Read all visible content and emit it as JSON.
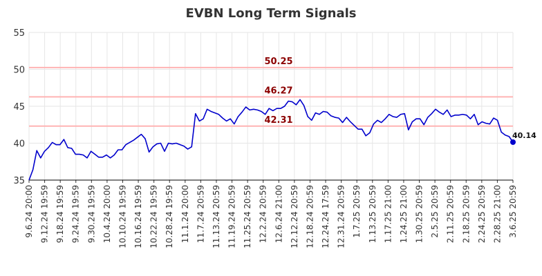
{
  "chart_data": {
    "type": "line",
    "title": "EVBN Long Term Signals",
    "xlabel": "",
    "ylabel": "",
    "ylim": [
      35,
      55
    ],
    "yticks": [
      35,
      40,
      45,
      50,
      55
    ],
    "grid": true,
    "x_tick_labels": [
      "9.6.24 20:00",
      "9.12.24 19:59",
      "9.18.24 19:59",
      "9.24.24 19:59",
      "9.30.24 19:59",
      "10.4.24 20:00",
      "10.10.24 19:59",
      "10.16.24 19:59",
      "10.22.24 19:59",
      "10.28.24 19:59",
      "11.1.24 20:00",
      "11.7.24 20:59",
      "11.13.24 20:59",
      "11.19.24 20:59",
      "11.25.24 20:59",
      "12.2.24 20:59",
      "12.6.24 21:00",
      "12.12.24 20:59",
      "12.18.24 20:59",
      "12.24.24 17:59",
      "12.31.24 20:59",
      "1.7.25 20:59",
      "1.13.25 20:59",
      "1.17.25 21:00",
      "1.24.25 21:00",
      "1.30.25 20:59",
      "2.5.25 20:59",
      "2.11.25 20:59",
      "2.18.25 20:59",
      "2.24.25 20:59",
      "2.28.25 21:00",
      "3.6.25 20:59"
    ],
    "series": [
      {
        "color": "#0000cc",
        "values": [
          35.0,
          36.4,
          39.0,
          38.0,
          38.9,
          39.4,
          40.1,
          39.8,
          39.8,
          40.5,
          39.4,
          39.3,
          38.5,
          38.5,
          38.4,
          38.0,
          38.9,
          38.5,
          38.1,
          38.1,
          38.4,
          38.0,
          38.4,
          39.1,
          39.1,
          39.8,
          40.1,
          40.4,
          40.8,
          41.2,
          40.6,
          38.8,
          39.5,
          39.9,
          40.0,
          38.9,
          40.0,
          39.9,
          40.0,
          39.8,
          39.6,
          39.2,
          39.5,
          44.0,
          43.0,
          43.3,
          44.6,
          44.3,
          44.1,
          43.9,
          43.4,
          43.0,
          43.3,
          42.6,
          43.6,
          44.2,
          44.9,
          44.5,
          44.6,
          44.5,
          44.3,
          43.9,
          44.7,
          44.4,
          44.7,
          44.7,
          45.0,
          45.7,
          45.6,
          45.2,
          45.9,
          45.1,
          43.6,
          43.1,
          44.1,
          43.9,
          44.3,
          44.2,
          43.7,
          43.5,
          43.4,
          42.8,
          43.5,
          42.9,
          42.4,
          41.9,
          41.9,
          41.0,
          41.4,
          42.6,
          43.1,
          42.8,
          43.3,
          43.9,
          43.6,
          43.5,
          43.9,
          44.0,
          41.8,
          42.9,
          43.3,
          43.3,
          42.5,
          43.5,
          44.0,
          44.6,
          44.2,
          43.9,
          44.5,
          43.6,
          43.8,
          43.8,
          43.9,
          43.8,
          43.3,
          43.9,
          42.5,
          42.9,
          42.7,
          42.6,
          43.4,
          43.1,
          41.5,
          41.1,
          40.9,
          40.14
        ]
      }
    ],
    "signal_lines": [
      {
        "value": 50.25,
        "label": "50.25"
      },
      {
        "value": 46.27,
        "label": "46.27"
      },
      {
        "value": 42.31,
        "label": "42.31"
      }
    ],
    "last_value_label": "40.14",
    "colors": {
      "line": "#0000cc",
      "signal_line": "#ffb3b3",
      "signal_text": "#8b0000",
      "grid": "#e6e6e6",
      "axis": "#000000"
    }
  }
}
